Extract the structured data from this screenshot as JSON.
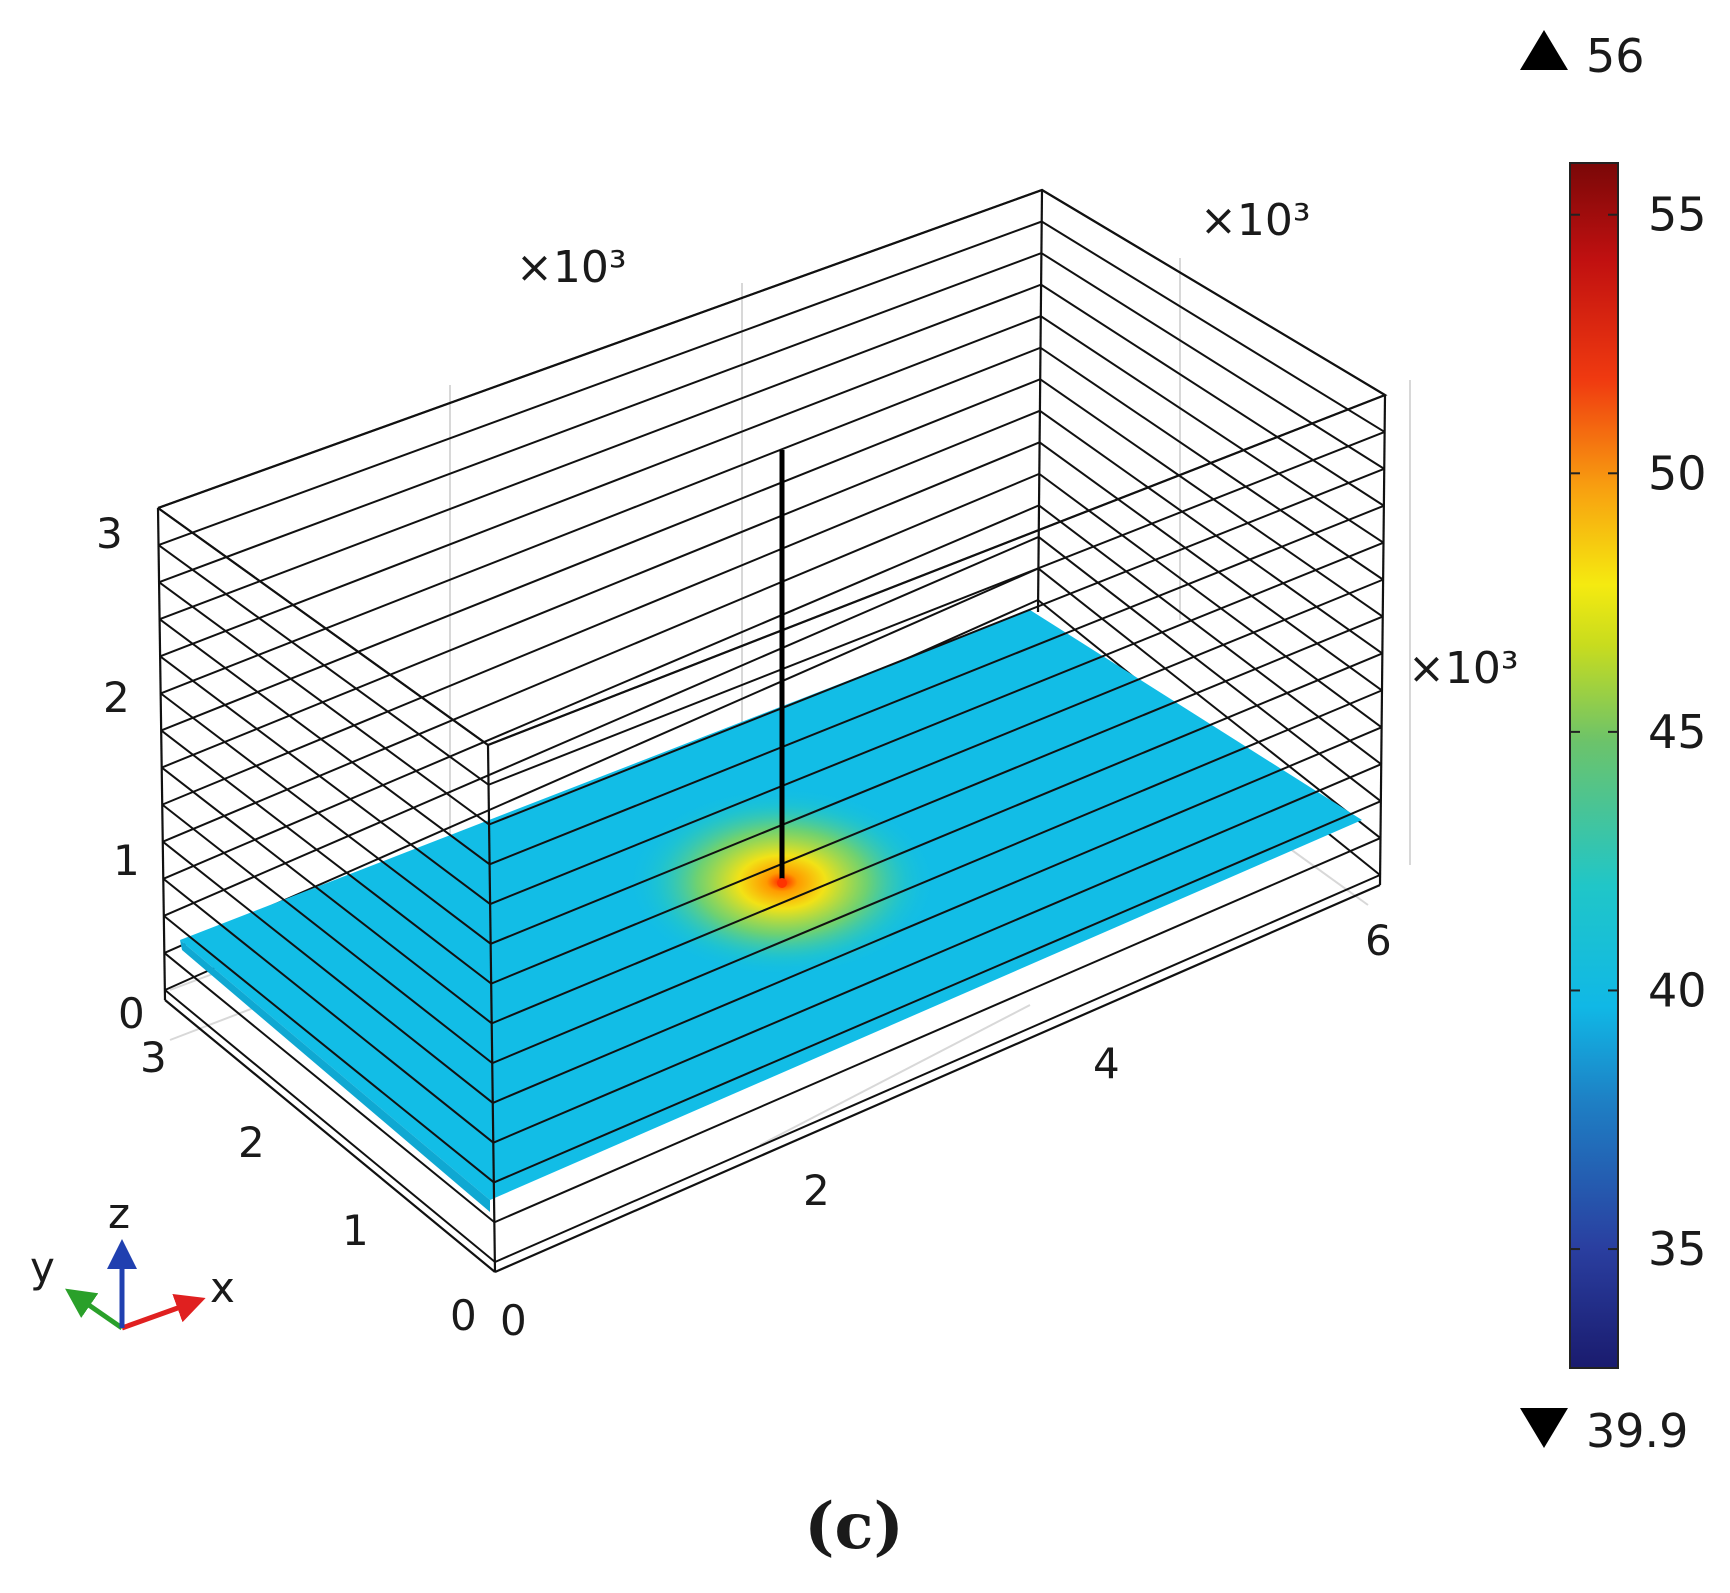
{
  "figure": {
    "caption": "(c)",
    "plot_type": "3D slice plot (COMSOL style)",
    "box": {
      "x_label_ticks": [
        "0",
        "2",
        "4",
        "6"
      ],
      "y_label_ticks": [
        "0",
        "1",
        "2",
        "3"
      ],
      "z_label_ticks": [
        "0",
        "1",
        "2",
        "3"
      ],
      "x_scale": "×10³",
      "y_scale": "×10³",
      "z_scale": "×10³"
    },
    "triad": {
      "x": "x",
      "y": "y",
      "z": "z"
    },
    "colorbar": {
      "max_marker": "56",
      "min_marker": "39.9",
      "ticks": [
        "55",
        "50",
        "45",
        "40",
        "35"
      ],
      "range": [
        32.7,
        56
      ]
    },
    "colors": {
      "slice": "#12bde6",
      "well": "#000000",
      "hot_spot": "#ff2a00"
    }
  }
}
